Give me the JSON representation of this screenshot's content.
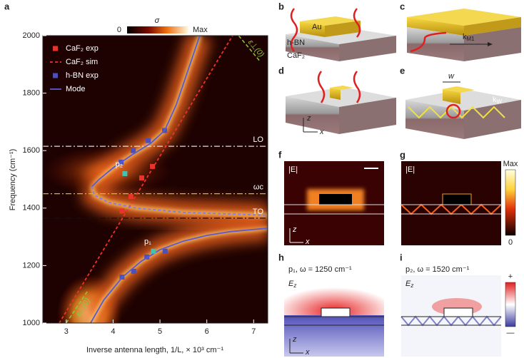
{
  "chart_data": {
    "type": "scatter",
    "panel_label": "a",
    "xlabel": "Inverse antenna length, 1/L, × 10³ cm⁻¹",
    "ylabel": "Frequency (cm⁻¹)",
    "xlim": [
      2.5,
      7.3
    ],
    "ylim": [
      1000,
      2000
    ],
    "xticks": [
      3,
      4,
      5,
      6,
      7
    ],
    "yticks": [
      1000,
      1200,
      1400,
      1600,
      1800,
      2000
    ],
    "colorbar": {
      "label": "σ",
      "min_label": "0",
      "max_label": "Max"
    },
    "legend": "upper left",
    "series": [
      {
        "name": "CaF₂ exp",
        "type": "scatter",
        "color": "#e8352a",
        "x": [
          4.19,
          4.38,
          4.61,
          4.84
        ],
        "y": [
          1390,
          1440,
          1505,
          1545
        ]
      },
      {
        "name": "CaF₂ sim",
        "type": "line",
        "style": "dashed",
        "color": "#e8352a",
        "x": [
          2.85,
          6.55
        ],
        "y": [
          1000,
          2000
        ]
      },
      {
        "name": "h-BN exp",
        "type": "scatter",
        "color": "#4f4fb8",
        "x": [
          4.19,
          4.44,
          4.72,
          5.11,
          4.17,
          4.43,
          4.75,
          5.1
        ],
        "y": [
          1160,
          1180,
          1230,
          1250,
          1560,
          1600,
          1635,
          1670
        ]
      },
      {
        "name": "Mode",
        "type": "line",
        "style": "solid",
        "color": "#5a5ad0",
        "x": [
          3.52,
          3.8,
          4.2,
          4.6,
          5.0,
          5.5,
          6.0,
          6.5,
          7.3,
          null,
          5.85,
          5.6,
          5.35,
          5.1,
          4.8,
          4.4,
          4.0,
          3.7,
          3.55
        ],
        "y": [
          1000,
          1080,
          1160,
          1215,
          1255,
          1285,
          1305,
          1318,
          1330,
          null,
          2000,
          1880,
          1760,
          1670,
          1625,
          1585,
          1540,
          1500,
          1475
        ]
      },
      {
        "type": "line",
        "style": "dashed",
        "color": "#7c7cf0",
        "x": [
          3.55,
          3.6,
          3.9,
          4.5,
          5.5,
          7.3
        ],
        "y": [
          1475,
          1445,
          1420,
          1400,
          1385,
          1375
        ]
      },
      {
        "type": "scatter",
        "color": "#3fc4b4",
        "x": [
          4.86,
          4.25
        ],
        "y": [
          1250,
          1520
        ],
        "point_labels": [
          "p₁",
          "p₂"
        ]
      }
    ],
    "hlines": [
      {
        "label": "LO",
        "value": 1615,
        "color": "#dddddd"
      },
      {
        "label": "ωc",
        "value": 1450,
        "color": "#c8c020"
      },
      {
        "label": "TO",
        "value": 1365,
        "color": "#111111"
      }
    ],
    "guides": [
      {
        "label": "ε⊥(0)",
        "color": "#8fc83a",
        "x": [
          6.68,
          7.14
        ],
        "y": [
          2000,
          1910
        ]
      },
      {
        "label": "ε⊥(0)",
        "color": "#8fc83a",
        "x": [
          3.0,
          3.45
        ],
        "y": [
          1000,
          1110
        ]
      }
    ]
  },
  "panels": {
    "b": {
      "label": "b",
      "texts": [
        "Au",
        "h-BN",
        "CaF₂"
      ]
    },
    "c": {
      "label": "c",
      "wavevector": [
        "k",
        "M1"
      ]
    },
    "d": {
      "label": "d",
      "axes": [
        "z",
        "x"
      ]
    },
    "e": {
      "label": "e",
      "width": "w",
      "wavevector": [
        "k",
        "W"
      ]
    },
    "f": {
      "label": "f",
      "field": "|E|",
      "axes": [
        "z",
        "x"
      ]
    },
    "g": {
      "label": "g",
      "field": "|E|",
      "colorbar": [
        "Max",
        "0"
      ]
    },
    "h": {
      "label": "h",
      "title": "p₁, ω = 1250 cm⁻¹",
      "field": [
        "E",
        "z"
      ],
      "axes": [
        "z",
        "x"
      ]
    },
    "i": {
      "label": "i",
      "title": "p₂, ω = 1520 cm⁻¹",
      "field": [
        "E",
        "z"
      ],
      "colorbar": [
        "+",
        "—"
      ]
    }
  }
}
